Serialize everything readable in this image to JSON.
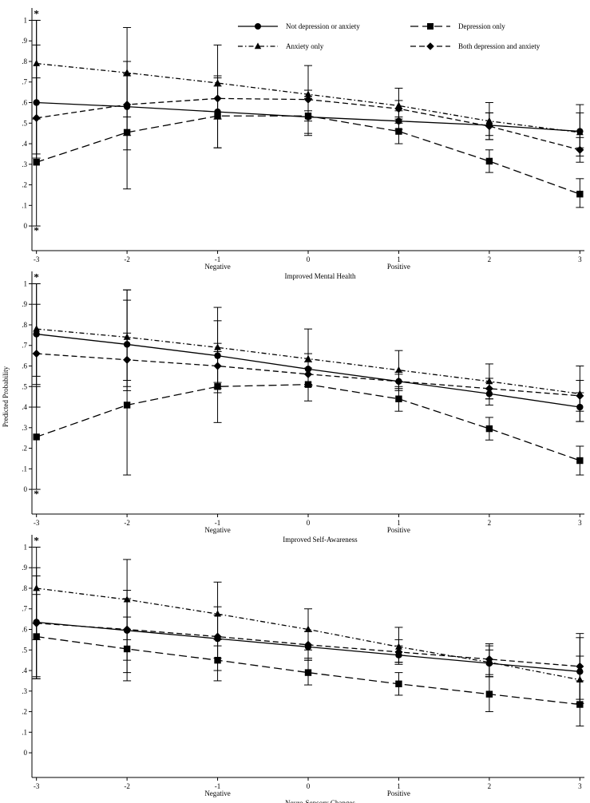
{
  "figure": {
    "ylabel": "Predicted Probability",
    "x_sublabels": {
      "negative": "Negative",
      "positive": "Positive"
    }
  },
  "legend": [
    {
      "name": "Not depression or anxiety",
      "marker": "circle",
      "dash": "solid"
    },
    {
      "name": "Depression only",
      "marker": "square",
      "dash": "longdash"
    },
    {
      "name": "Anxiety only",
      "marker": "triangle",
      "dash": "dashdot"
    },
    {
      "name": "Both depression and anxiety",
      "marker": "diamond",
      "dash": "dash"
    }
  ],
  "chart_data": [
    {
      "type": "line",
      "title": "",
      "xlabel": "Improved Mental Health",
      "ylabel": "Predicted Probability",
      "x": [
        -3,
        -2,
        -1,
        0,
        1,
        2,
        3
      ],
      "x_ticks": [
        "-3",
        "-2",
        "-1",
        "0",
        "1",
        "2",
        "3"
      ],
      "y_ticks": [
        "0",
        ".1",
        ".2",
        ".3",
        ".4",
        ".5",
        ".6",
        ".7",
        ".8",
        ".9",
        "1"
      ],
      "ylim": [
        -0.12,
        1.06
      ],
      "xlim": [
        -3.05,
        3.05
      ],
      "truncation_markers": [
        {
          "x": -3,
          "y": 1.0,
          "symbol": "*"
        },
        {
          "x": -3,
          "y": 0.0,
          "symbol": "*"
        }
      ],
      "series": [
        {
          "name": "Not depression or anxiety",
          "values": [
            0.6,
            0.58,
            0.555,
            0.53,
            0.51,
            0.49,
            0.46
          ],
          "ci_low": [
            0.33,
            0.37,
            0.38,
            0.44,
            0.47,
            0.44,
            0.38
          ],
          "ci_high": [
            0.88,
            0.8,
            0.73,
            0.63,
            0.56,
            0.55,
            0.55
          ]
        },
        {
          "name": "Depression only",
          "values": [
            0.31,
            0.455,
            0.535,
            0.535,
            0.46,
            0.315,
            0.155
          ],
          "ci_low": [
            0.0,
            0.18,
            0.38,
            0.45,
            0.4,
            0.26,
            0.09
          ],
          "ci_high": [
            1.0,
            0.73,
            0.68,
            0.62,
            0.52,
            0.37,
            0.23
          ]
        },
        {
          "name": "Anxiety only",
          "values": [
            0.79,
            0.745,
            0.695,
            0.64,
            0.585,
            0.51,
            0.455
          ],
          "ci_low": [
            0.52,
            0.53,
            0.52,
            0.51,
            0.5,
            0.42,
            0.34
          ],
          "ci_high": [
            1.0,
            0.965,
            0.88,
            0.78,
            0.67,
            0.6,
            0.59
          ]
        },
        {
          "name": "Both depression and anxiety",
          "values": [
            0.525,
            0.59,
            0.62,
            0.615,
            0.57,
            0.485,
            0.37
          ],
          "ci_low": [
            0.35,
            0.44,
            0.52,
            0.56,
            0.53,
            0.42,
            0.31
          ],
          "ci_high": [
            0.72,
            0.74,
            0.72,
            0.66,
            0.61,
            0.55,
            0.43
          ]
        }
      ]
    },
    {
      "type": "line",
      "title": "",
      "xlabel": "Improved Self-Awareness",
      "ylabel": "Predicted Probability",
      "x": [
        -3,
        -2,
        -1,
        0,
        1,
        2,
        3
      ],
      "x_ticks": [
        "-3",
        "-2",
        "-1",
        "0",
        "1",
        "2",
        "3"
      ],
      "y_ticks": [
        "0",
        ".1",
        ".2",
        ".3",
        ".4",
        ".5",
        ".6",
        ".7",
        ".8",
        ".9",
        "1"
      ],
      "ylim": [
        -0.12,
        1.06
      ],
      "xlim": [
        -3.05,
        3.05
      ],
      "truncation_markers": [
        {
          "x": -3,
          "y": 1.0,
          "symbol": "*"
        },
        {
          "x": -3,
          "y": 0.0,
          "symbol": "*"
        }
      ],
      "series": [
        {
          "name": "Not depression or anxiety",
          "values": [
            0.755,
            0.705,
            0.65,
            0.585,
            0.525,
            0.465,
            0.4
          ],
          "ci_low": [
            0.51,
            0.48,
            0.47,
            0.5,
            0.48,
            0.41,
            0.33
          ],
          "ci_high": [
            1.0,
            0.92,
            0.82,
            0.66,
            0.57,
            0.52,
            0.47
          ]
        },
        {
          "name": "Depression only",
          "values": [
            0.255,
            0.41,
            0.5,
            0.51,
            0.44,
            0.295,
            0.14
          ],
          "ci_low": [
            0.0,
            0.07,
            0.325,
            0.43,
            0.38,
            0.24,
            0.07
          ],
          "ci_high": [
            0.5,
            0.97,
            0.67,
            0.59,
            0.5,
            0.35,
            0.21
          ]
        },
        {
          "name": "Anxiety only",
          "values": [
            0.78,
            0.74,
            0.69,
            0.635,
            0.58,
            0.525,
            0.465
          ],
          "ci_low": [
            0.55,
            0.53,
            0.52,
            0.51,
            0.49,
            0.44,
            0.33
          ],
          "ci_high": [
            1.0,
            0.97,
            0.885,
            0.78,
            0.675,
            0.61,
            0.6
          ]
        },
        {
          "name": "Both depression and anxiety",
          "values": [
            0.66,
            0.63,
            0.6,
            0.56,
            0.525,
            0.49,
            0.455
          ],
          "ci_low": [
            0.4,
            0.5,
            0.49,
            0.5,
            0.49,
            0.44,
            0.38
          ],
          "ci_high": [
            0.9,
            0.76,
            0.71,
            0.62,
            0.56,
            0.54,
            0.53
          ]
        }
      ]
    },
    {
      "type": "line",
      "title": "",
      "xlabel": "Neuro-Sensory Changes",
      "ylabel": "Predicted Probability",
      "x": [
        -3,
        -2,
        -1,
        0,
        1,
        2,
        3
      ],
      "x_ticks": [
        "-3",
        "-2",
        "-1",
        "0",
        "1",
        "2",
        "3"
      ],
      "y_ticks": [
        "0",
        ".1",
        ".2",
        ".3",
        ".4",
        ".5",
        ".6",
        ".7",
        ".8",
        ".9",
        "1"
      ],
      "ylim": [
        -0.12,
        1.06
      ],
      "xlim": [
        -3.05,
        3.05
      ],
      "truncation_markers": [
        {
          "x": -3,
          "y": 1.0,
          "symbol": "*"
        }
      ],
      "series": [
        {
          "name": "Not depression or anxiety",
          "values": [
            0.635,
            0.595,
            0.555,
            0.515,
            0.475,
            0.435,
            0.395
          ],
          "ci_low": [
            0.36,
            0.39,
            0.4,
            0.45,
            0.43,
            0.37,
            0.24
          ],
          "ci_high": [
            0.9,
            0.79,
            0.71,
            0.59,
            0.52,
            0.5,
            0.56
          ]
        },
        {
          "name": "Depression only",
          "values": [
            0.565,
            0.505,
            0.45,
            0.39,
            0.335,
            0.285,
            0.235
          ],
          "ci_low": [
            0.36,
            0.35,
            0.35,
            0.33,
            0.28,
            0.2,
            0.13
          ],
          "ci_high": [
            0.77,
            0.66,
            0.55,
            0.45,
            0.39,
            0.37,
            0.35
          ]
        },
        {
          "name": "Anxiety only",
          "values": [
            0.8,
            0.745,
            0.675,
            0.6,
            0.515,
            0.44,
            0.355
          ],
          "ci_low": [
            0.55,
            0.55,
            0.52,
            0.5,
            0.44,
            0.37,
            0.24
          ],
          "ci_high": [
            1.0,
            0.94,
            0.83,
            0.7,
            0.61,
            0.52,
            0.47
          ]
        },
        {
          "name": "Both depression and anxiety",
          "values": [
            0.63,
            0.6,
            0.565,
            0.525,
            0.49,
            0.455,
            0.42
          ],
          "ci_low": [
            0.37,
            0.45,
            0.46,
            0.46,
            0.44,
            0.38,
            0.26
          ],
          "ci_high": [
            0.86,
            0.75,
            0.67,
            0.59,
            0.55,
            0.53,
            0.58
          ]
        }
      ]
    }
  ]
}
